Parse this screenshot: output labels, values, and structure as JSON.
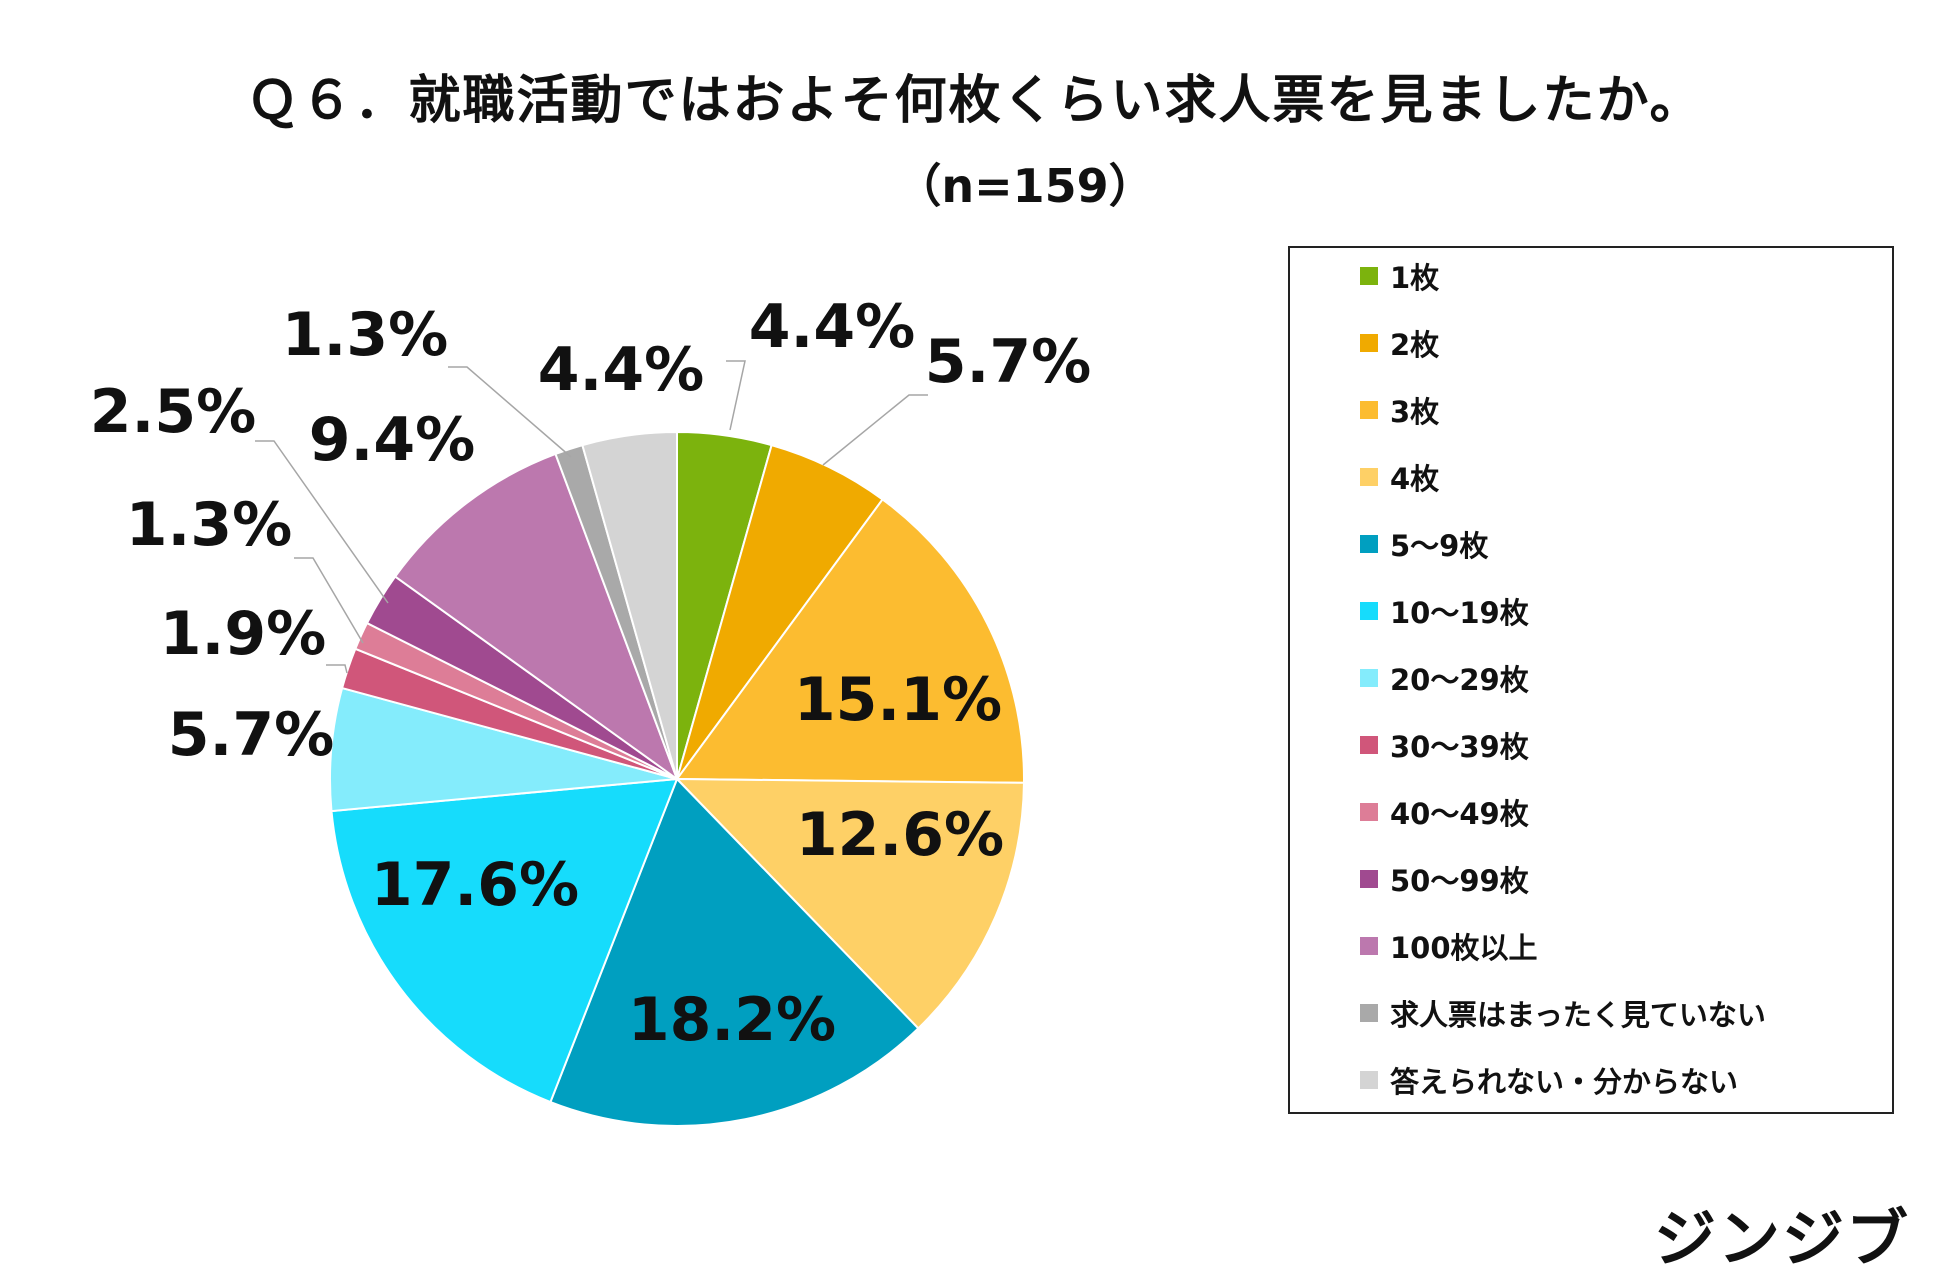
{
  "chart_data": {
    "type": "pie",
    "title": "Ｑ６．就職活動ではおよそ何枚くらい求人票を見ましたか。",
    "subtitle": "（n=159）",
    "legend_position": "right",
    "slices": [
      {
        "label": "1枚",
        "value": 4.4,
        "display": "4.4%",
        "color": "#7cb30d"
      },
      {
        "label": "2枚",
        "value": 5.7,
        "display": "5.7%",
        "color": "#f0aa00"
      },
      {
        "label": "3枚",
        "value": 15.1,
        "display": "15.1%",
        "color": "#fcbc30"
      },
      {
        "label": "4枚",
        "value": 12.6,
        "display": "12.6%",
        "color": "#fed066"
      },
      {
        "label": "5〜9枚",
        "value": 18.2,
        "display": "18.2%",
        "color": "#009fc0"
      },
      {
        "label": "10〜19枚",
        "value": 17.6,
        "display": "17.6%",
        "color": "#16dcfc"
      },
      {
        "label": "20〜29枚",
        "value": 5.7,
        "display": "5.7%",
        "color": "#84ecfc"
      },
      {
        "label": "30〜39枚",
        "value": 1.9,
        "display": "1.9%",
        "color": "#d0567a"
      },
      {
        "label": "40〜49枚",
        "value": 1.3,
        "display": "1.3%",
        "color": "#dd7d97"
      },
      {
        "label": "50〜99枚",
        "value": 2.5,
        "display": "2.5%",
        "color": "#a04a90"
      },
      {
        "label": "100枚以上",
        "value": 9.4,
        "display": "9.4%",
        "color": "#bc78ae"
      },
      {
        "label": "求人票はまったく見ていない",
        "value": 1.3,
        "display": "1.3%",
        "color": "#a9a9a9"
      },
      {
        "label": "答えられない・分からない",
        "value": 4.4,
        "display": "4.4%",
        "color": "#d4d4d4"
      }
    ]
  },
  "brand": "ジンジブ"
}
